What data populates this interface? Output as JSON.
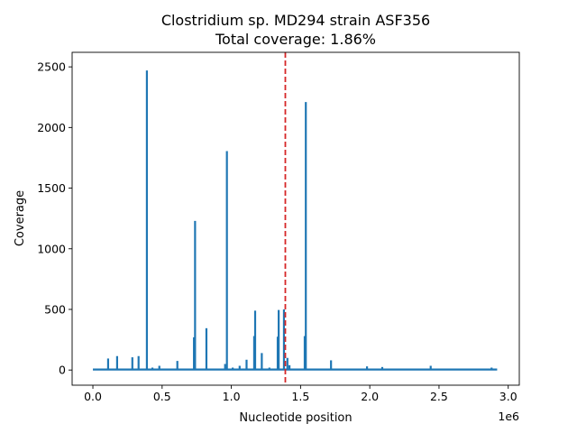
{
  "chart_data": {
    "type": "line",
    "title": "Clostridium sp. MD294 strain ASF356",
    "subtitle": "Total coverage: 1.86%",
    "xlabel": "Nucleotide position",
    "ylabel": "Coverage",
    "x_offset_label": "1e6",
    "xlim": [
      -150000,
      3080000
    ],
    "ylim": [
      -125,
      2620
    ],
    "x_ticks": [
      {
        "value": 0,
        "label": "0.0"
      },
      {
        "value": 500000,
        "label": "0.5"
      },
      {
        "value": 1000000,
        "label": "1.0"
      },
      {
        "value": 1500000,
        "label": "1.5"
      },
      {
        "value": 2000000,
        "label": "2.0"
      },
      {
        "value": 2500000,
        "label": "2.5"
      },
      {
        "value": 3000000,
        "label": "3.0"
      }
    ],
    "y_ticks": [
      {
        "value": 0,
        "label": "0"
      },
      {
        "value": 500,
        "label": "500"
      },
      {
        "value": 1000,
        "label": "1000"
      },
      {
        "value": 1500,
        "label": "1500"
      },
      {
        "value": 2000,
        "label": "2000"
      },
      {
        "value": 2500,
        "label": "2500"
      }
    ],
    "grid": false,
    "line_color": "#1f77b4",
    "marker": {
      "x": 1390000,
      "style": "dashed",
      "color": "#d62728"
    },
    "genome_start": 0,
    "genome_end": 2920000,
    "peaks": [
      {
        "x": 110000,
        "y": 95
      },
      {
        "x": 175000,
        "y": 115
      },
      {
        "x": 285000,
        "y": 105
      },
      {
        "x": 330000,
        "y": 115
      },
      {
        "x": 390000,
        "y": 2470
      },
      {
        "x": 430000,
        "y": 20
      },
      {
        "x": 480000,
        "y": 35
      },
      {
        "x": 610000,
        "y": 75
      },
      {
        "x": 730000,
        "y": 270
      },
      {
        "x": 738000,
        "y": 1230
      },
      {
        "x": 820000,
        "y": 345
      },
      {
        "x": 955000,
        "y": 50
      },
      {
        "x": 968000,
        "y": 1805
      },
      {
        "x": 1010000,
        "y": 20
      },
      {
        "x": 1060000,
        "y": 35
      },
      {
        "x": 1110000,
        "y": 85
      },
      {
        "x": 1165000,
        "y": 280
      },
      {
        "x": 1172000,
        "y": 490
      },
      {
        "x": 1220000,
        "y": 140
      },
      {
        "x": 1275000,
        "y": 20
      },
      {
        "x": 1335000,
        "y": 275
      },
      {
        "x": 1342000,
        "y": 495
      },
      {
        "x": 1380000,
        "y": 500
      },
      {
        "x": 1405000,
        "y": 100
      },
      {
        "x": 1420000,
        "y": 40
      },
      {
        "x": 1530000,
        "y": 280
      },
      {
        "x": 1538000,
        "y": 2210
      },
      {
        "x": 1720000,
        "y": 80
      },
      {
        "x": 1980000,
        "y": 30
      },
      {
        "x": 2090000,
        "y": 25
      },
      {
        "x": 2440000,
        "y": 35
      },
      {
        "x": 2880000,
        "y": 20
      }
    ]
  }
}
